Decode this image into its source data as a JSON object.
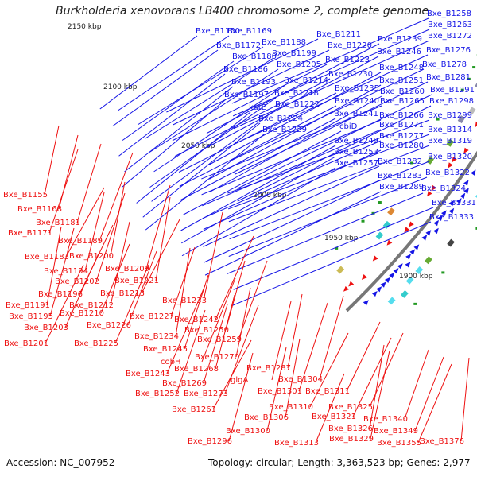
{
  "title": "Burkholderia xenovorans LB400 chromosome 2, complete genome",
  "footer": {
    "accession": "Accession: NC_007952",
    "topology": "Topology: circular; Length: 3,363,523 bp; Genes: 2,977"
  },
  "colors": {
    "plus_strand": "#1515e6",
    "minus_strand": "#ee1111",
    "backbone": "#777777",
    "rna": "#229922"
  },
  "ticks": [
    "2150 kbp",
    "2100 kbp",
    "2050 kbp",
    "2000 kbp",
    "1950 kbp",
    "1900 kbp"
  ],
  "blue_labels": [
    "Bxe_B1150",
    "Bxe_B1169",
    "Bxe_B1172",
    "Bxe_B1188",
    "Bxe_B1180",
    "Bxe_B1199",
    "Bxe_B1186",
    "Bxe_B1205",
    "Bxe_B1193",
    "Bxe_B1214",
    "Bxe_B1197",
    "Bxe_B1218",
    "katE",
    "Bxe_B1222",
    "Bxe_B1224",
    "Bxe_B1229",
    "Bxe_B1211",
    "Bxe_B1220",
    "Bxe_B1223",
    "Bxe_B1230",
    "Bxe_B1235",
    "Bxe_B1240",
    "Bxe_B1241",
    "cbiD",
    "Bxe_B1249",
    "Bxe_B1253",
    "Bxe_B1257",
    "Bxe_B1239",
    "Bxe_B1246",
    "Bxe_B1248",
    "Bxe_B1251",
    "Bxe_B1260",
    "Bxe_B1265",
    "Bxe_B1266",
    "Bxe_B1271",
    "Bxe_B1277",
    "Bxe_B1280",
    "Bxe_B1282",
    "Bxe_B1283",
    "Bxe_B1289",
    "Bxe_B1258",
    "Bxe_B1263",
    "Bxe_B1272",
    "Bxe_B1276",
    "Bxe_B1278",
    "Bxe_B1281",
    "Bxe_B1291",
    "Bxe_B1298",
    "Bxe_B1299",
    "Bxe_B1314",
    "Bxe_B1319",
    "Bxe_B1320",
    "Bxe_B1322",
    "Bxe_B1324",
    "Bxe_B1331",
    "Bxe_B1333"
  ],
  "red_labels": [
    "Bxe_B1155",
    "Bxe_B1168",
    "Bxe_B1181",
    "Bxe_B1171",
    "Bxe_B1189",
    "Bxe_B1183",
    "Bxe_B1200",
    "Bxe_B1194",
    "Bxe_B1209",
    "Bxe_B1202",
    "Bxe_B1196",
    "Bxe_B1213",
    "Bxe_B1191",
    "Bxe_B1212",
    "Bxe_B1195",
    "Bxe_B1210",
    "Bxe_B1203",
    "Bxe_B1201",
    "Bxe_B1221",
    "Bxe_B1233",
    "Bxe_B1227",
    "Bxe_B1226",
    "Bxe_B1225",
    "Bxe_B1242",
    "Bxe_B1234",
    "Bxe_B1250",
    "Bxe_B1245",
    "Bxe_B1259",
    "cobH",
    "Bxe_B1243",
    "Bxe_B1270",
    "Bxe_B1268",
    "Bxe_B1269",
    "Bxe_B1252",
    "Bxe_B1273",
    "Bxe_B1261",
    "Bxe_B1287",
    "glgA",
    "Bxe_B1304",
    "Bxe_B1301",
    "Bxe_B1311",
    "Bxe_B1310",
    "Bxe_B1306",
    "Bxe_B1300",
    "Bxe_B1296",
    "Bxe_B1313",
    "Bxe_B1325",
    "Bxe_B1321",
    "Bxe_B1326",
    "Bxe_B1329",
    "Bxe_B1340",
    "Bxe_B1349",
    "Bxe_B1355",
    "Bxe_B1376"
  ]
}
